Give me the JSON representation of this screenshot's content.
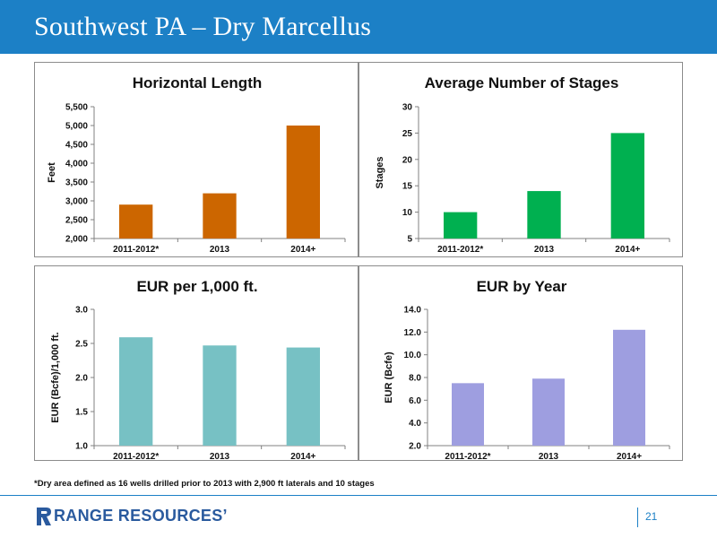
{
  "header": {
    "title": "Southwest PA – Dry Marcellus"
  },
  "footnote": "*Dry area defined as 16 wells drilled prior to 2013 with 2,900 ft laterals and 10 stages",
  "footer": {
    "logo_text": "RANGE RESOURCES’",
    "page_number": "21"
  },
  "colors": {
    "header_bg": "#1c80c6",
    "horizontal_length": "#cc6600",
    "stages": "#00b050",
    "eur_per_1000": "#77c1c4",
    "eur_by_year": "#9e9ee0"
  },
  "chart_data": [
    {
      "type": "bar",
      "title": "Horizontal Length",
      "ylabel": "Feet",
      "xlabel": "",
      "categories": [
        "2011-2012*",
        "2013",
        "2014+"
      ],
      "values": [
        2900,
        3200,
        5000
      ],
      "ylim": [
        2000,
        5500
      ],
      "ticks": [
        2000,
        2500,
        3000,
        3500,
        4000,
        4500,
        5000,
        5500
      ],
      "tick_labels": [
        "2,000",
        "2,500",
        "3,000",
        "3,500",
        "4,000",
        "4,500",
        "5,000",
        "5,500"
      ],
      "color": "#cc6600",
      "grid": false,
      "legend": "none"
    },
    {
      "type": "bar",
      "title": "Average Number of Stages",
      "ylabel": "Stages",
      "xlabel": "",
      "categories": [
        "2011-2012*",
        "2013",
        "2014+"
      ],
      "values": [
        10,
        14,
        25
      ],
      "ylim": [
        5,
        30
      ],
      "ticks": [
        5,
        10,
        15,
        20,
        25,
        30
      ],
      "tick_labels": [
        "5",
        "10",
        "15",
        "20",
        "25",
        "30"
      ],
      "color": "#00b050",
      "grid": false,
      "legend": "none"
    },
    {
      "type": "bar",
      "title": "EUR per 1,000 ft.",
      "ylabel": "EUR (Bcfe)/1,000 ft.",
      "xlabel": "",
      "categories": [
        "2011-2012*",
        "2013",
        "2014+"
      ],
      "values": [
        2.59,
        2.47,
        2.44
      ],
      "ylim": [
        1.0,
        3.0
      ],
      "ticks": [
        1.0,
        1.5,
        2.0,
        2.5,
        3.0
      ],
      "tick_labels": [
        "1.0",
        "1.5",
        "2.0",
        "2.5",
        "3.0"
      ],
      "color": "#77c1c4",
      "grid": false,
      "legend": "none"
    },
    {
      "type": "bar",
      "title": "EUR by Year",
      "ylabel": "EUR (Bcfe)",
      "xlabel": "",
      "categories": [
        "2011-2012*",
        "2013",
        "2014+"
      ],
      "values": [
        7.5,
        7.9,
        12.2
      ],
      "ylim": [
        2.0,
        14.0
      ],
      "ticks": [
        2.0,
        4.0,
        6.0,
        8.0,
        10.0,
        12.0,
        14.0
      ],
      "tick_labels": [
        "2.0",
        "4.0",
        "6.0",
        "8.0",
        "10.0",
        "12.0",
        "14.0"
      ],
      "color": "#9e9ee0",
      "grid": false,
      "legend": "none"
    }
  ]
}
